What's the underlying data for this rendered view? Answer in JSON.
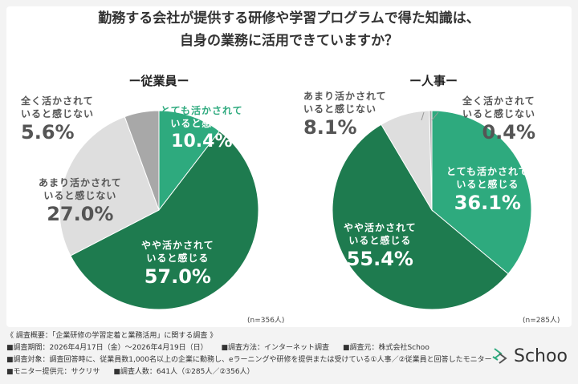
{
  "title": {
    "line1": "勤務する会社が提供する研修や学習プログラムで得た知識は、",
    "line2": "自身の業務に活用できていますか？"
  },
  "chart_data": [
    {
      "type": "pie",
      "title": "ー従業員ー",
      "n": "(n=356人)",
      "slices": [
        {
          "label_line1": "とても活かされて",
          "label_line2": "いると感じる",
          "value": 10.4,
          "value_label": "10.4%",
          "color": "#2eaa7e"
        },
        {
          "label_line1": "やや活かされて",
          "label_line2": "いると感じる",
          "value": 57.0,
          "value_label": "57.0%",
          "color": "#1e7b4f"
        },
        {
          "label_line1": "あまり活かされて",
          "label_line2": "いると感じない",
          "value": 27.0,
          "value_label": "27.0%",
          "color": "#dedede"
        },
        {
          "label_line1": "全く活かされて",
          "label_line2": "いると感じない",
          "value": 5.6,
          "value_label": "5.6%",
          "color": "#a8a8a8"
        }
      ]
    },
    {
      "type": "pie",
      "title": "ー人事ー",
      "n": "(n=285人)",
      "slices": [
        {
          "label_line1": "とても活かされて",
          "label_line2": "いると感じる",
          "value": 36.1,
          "value_label": "36.1%",
          "color": "#2eaa7e"
        },
        {
          "label_line1": "やや活かされて",
          "label_line2": "いると感じる",
          "value": 55.4,
          "value_label": "55.4%",
          "color": "#1e7b4f"
        },
        {
          "label_line1": "あまり活かされて",
          "label_line2": "いると感じない",
          "value": 8.1,
          "value_label": "8.1%",
          "color": "#dedede"
        },
        {
          "label_line1": "全く活かされて",
          "label_line2": "いると感じない",
          "value": 0.4,
          "value_label": "0.4%",
          "color": "#a8a8a8"
        }
      ]
    }
  ],
  "footer": {
    "line1": "《 調査概要：「企業研修の学習定着と業務活用」に関する調査 》",
    "line2a": "■調査期間：2026年4月17日（金）〜2026年4月19日（日）",
    "line2b": "■調査方法：インターネット調査",
    "line2c": "■調査元：株式会社Schoo",
    "line3": "■調査対象：調査回答時に、従業員数1,000名以上の企業に勤務し、eラーニングや研修を提供または受けている①人事／②従業員と回答したモニター",
    "line4a": "■モニター提供元：サクリサ",
    "line4b": "■調査人数：641人（①285人／②356人）"
  },
  "logo": {
    "text": "Schoo",
    "icon": "schoo-logo-icon"
  }
}
